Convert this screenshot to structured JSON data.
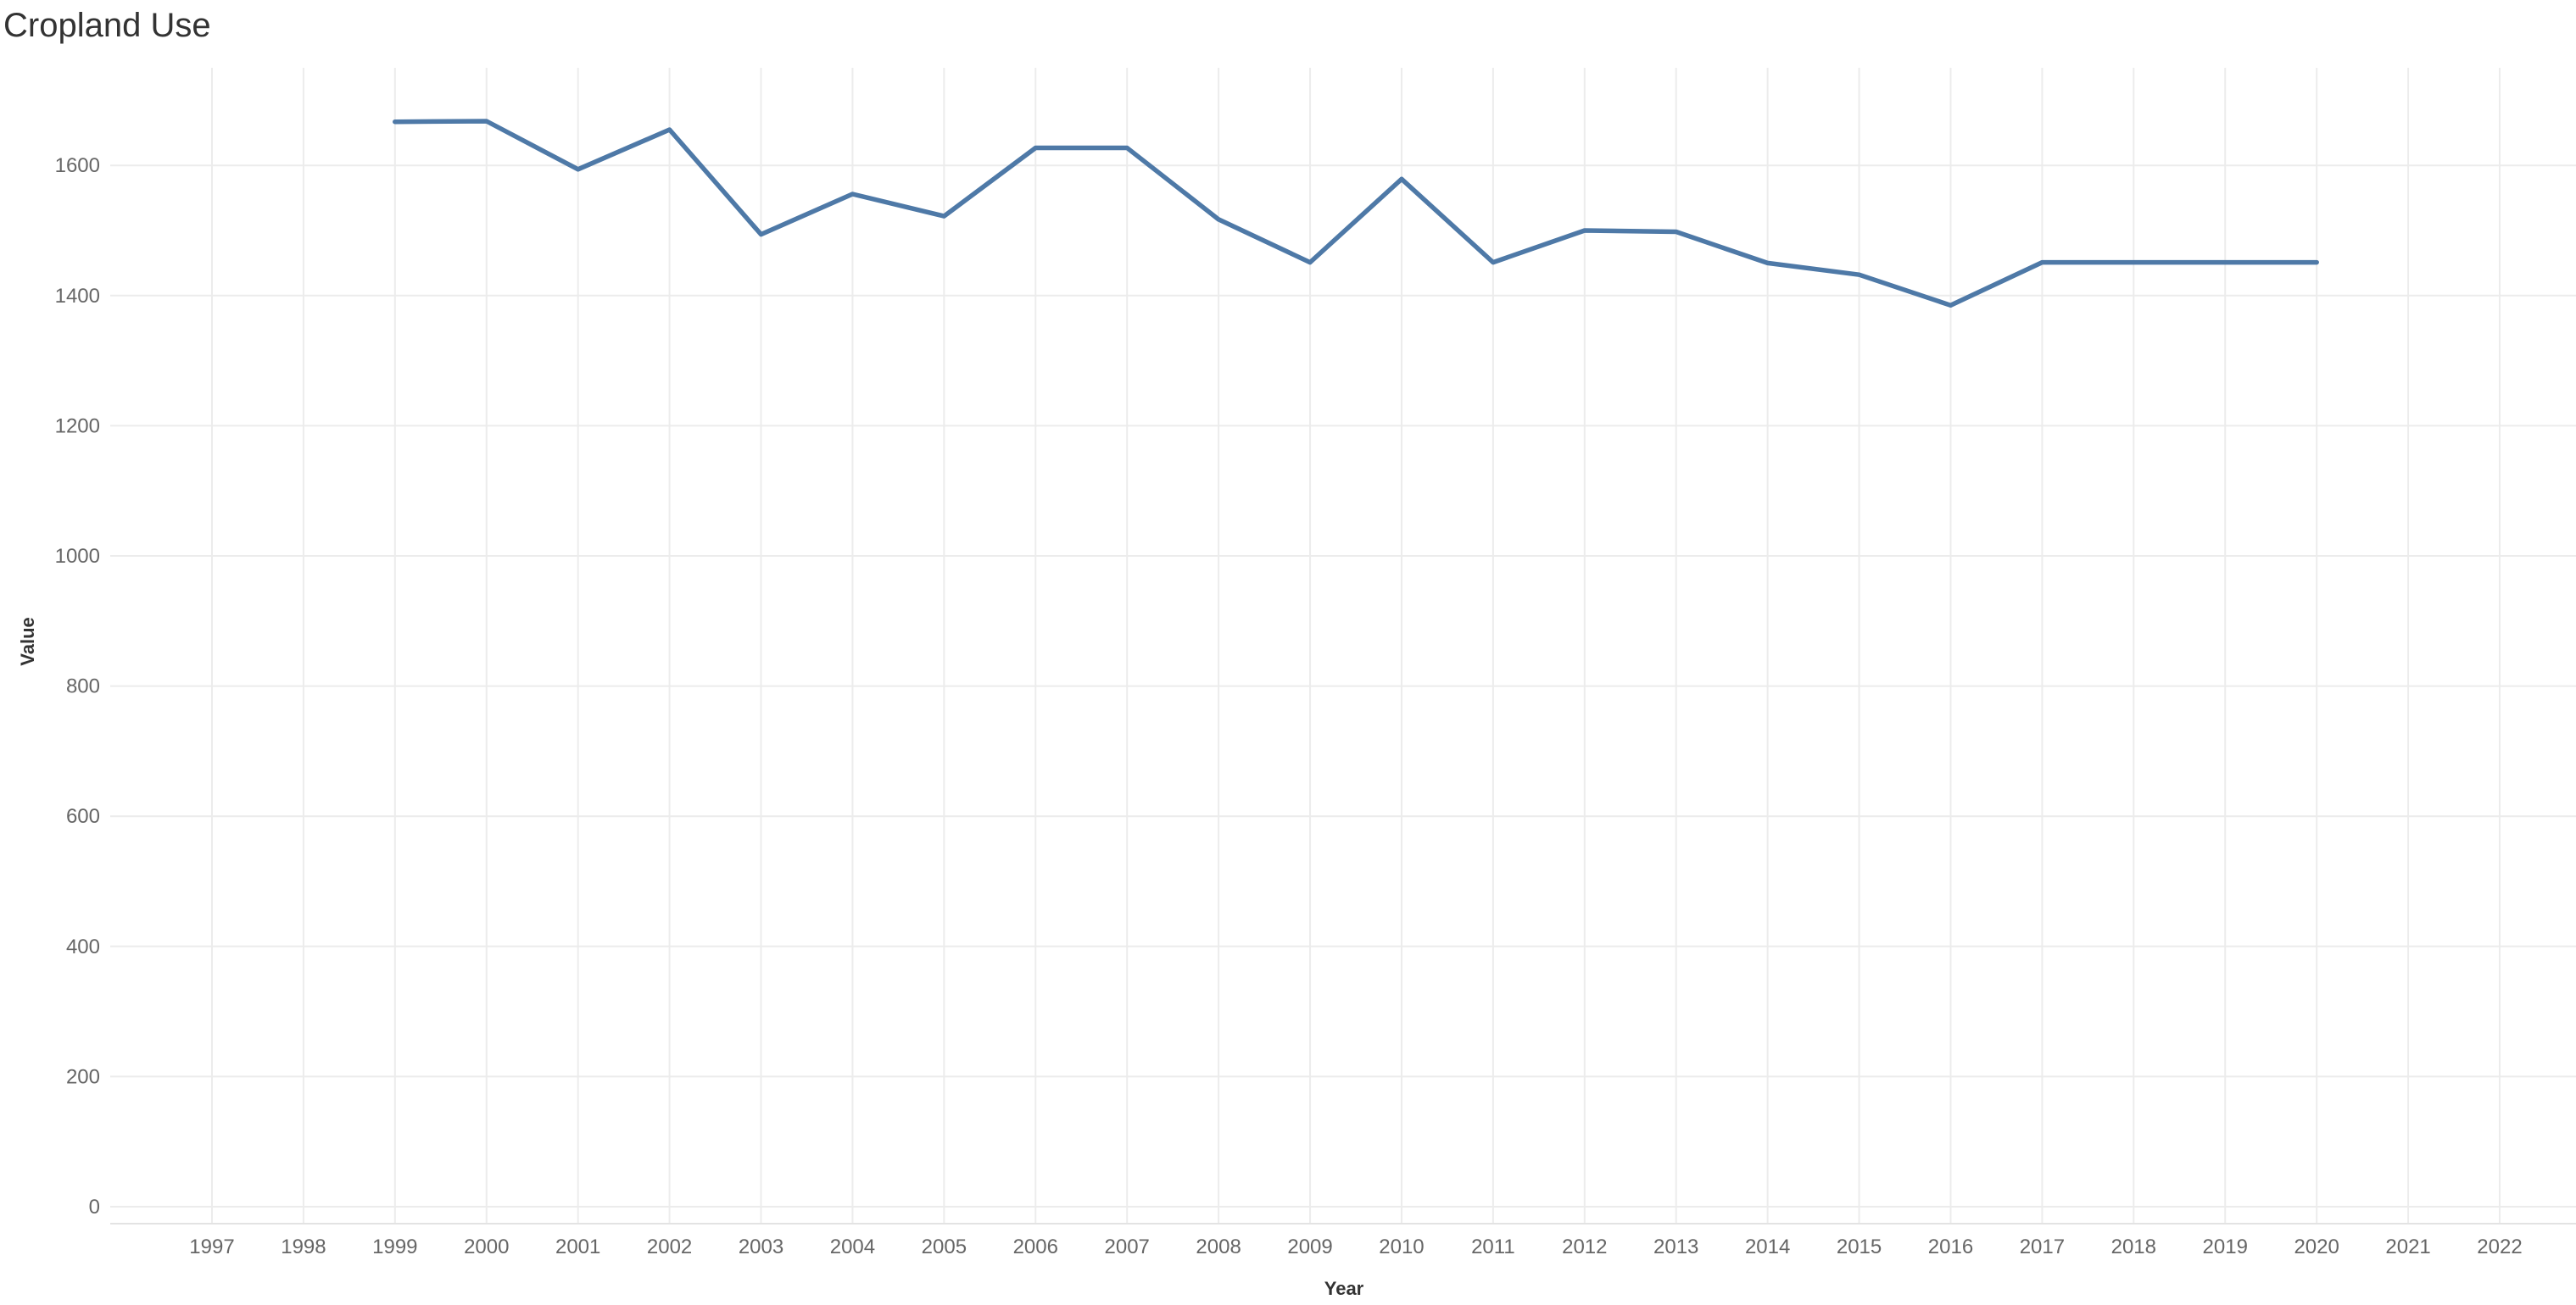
{
  "chart_data": {
    "type": "line",
    "title": "Cropland Use",
    "xlabel": "Year",
    "ylabel": "Value",
    "x_ticks": [
      "1997",
      "1998",
      "1999",
      "2000",
      "2001",
      "2002",
      "2003",
      "2004",
      "2005",
      "2006",
      "2007",
      "2008",
      "2009",
      "2010",
      "2011",
      "2012",
      "2013",
      "2014",
      "2015",
      "2016",
      "2017",
      "2018",
      "2019",
      "2020",
      "2021",
      "2022"
    ],
    "y_ticks": [
      "0",
      "200",
      "400",
      "600",
      "800",
      "1000",
      "1200",
      "1400",
      "1600"
    ],
    "xlim": [
      1997,
      2022
    ],
    "ylim": [
      0,
      1750
    ],
    "grid": true,
    "line_color": "#4e79a7",
    "series": [
      {
        "x": [
          1999,
          2000,
          2001,
          2002,
          2003,
          2004,
          2005,
          2006,
          2007,
          2008,
          2009,
          2010,
          2011,
          2012,
          2013,
          2014,
          2015,
          2016,
          2017,
          2018,
          2019,
          2020
        ],
        "values": [
          1667,
          1668,
          1594,
          1655,
          1494,
          1556,
          1522,
          1627,
          1627,
          1517,
          1451,
          1579,
          1451,
          1500,
          1498,
          1450,
          1432,
          1385,
          1451,
          1451,
          1451,
          1451
        ]
      }
    ]
  }
}
